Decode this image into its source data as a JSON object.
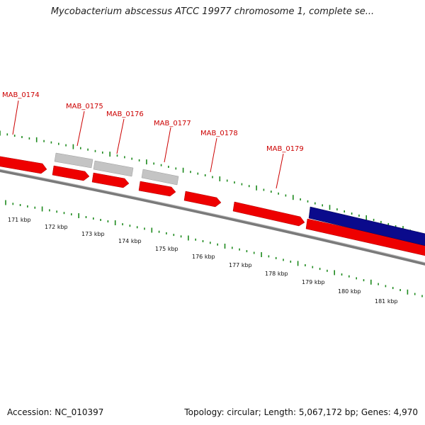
{
  "title": "Mycobacterium abscessus ATCC 19977 chromosome 1, complete se...",
  "accession": "Accession: NC_010397",
  "info": "Topology: circular; Length: 5,067,172 bp; Genes: 4,970",
  "colors": {
    "forward_gene": "#ee0000",
    "pseudo_gene": "#c4c4c4",
    "reverse_gene": "#0a0a8c",
    "backbone": "#808080",
    "ticks": "#1d8a1d",
    "label": "#cc0000"
  },
  "gene_labels": [
    "MAB_0174",
    "MAB_0175",
    "MAB_0176",
    "MAB_0177",
    "MAB_0178",
    "MAB_0179"
  ],
  "kbp_labels": [
    "171 kbp",
    "172 kbp",
    "173 kbp",
    "174 kbp",
    "175 kbp",
    "176 kbp",
    "177 kbp",
    "178 kbp",
    "179 kbp",
    "180 kbp",
    "181 kbp"
  ]
}
